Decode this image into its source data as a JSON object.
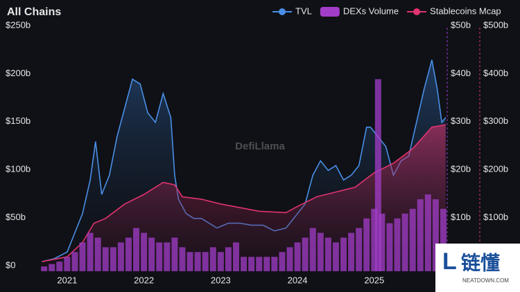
{
  "chart_data": {
    "type": "line",
    "title": "All Chains",
    "xlim": [
      2020.64,
      2025.95
    ],
    "xticks": [
      2021,
      2022,
      2023,
      2024,
      2025
    ],
    "ylim": [
      0,
      250
    ],
    "yticks": [
      {
        "value": 0,
        "label": "$0"
      },
      {
        "value": 50,
        "label": "$50b"
      },
      {
        "value": 100,
        "label": "$100b"
      },
      {
        "value": 150,
        "label": "$150b"
      },
      {
        "value": 200,
        "label": "$200b"
      },
      {
        "value": 250,
        "label": "$250b"
      }
    ],
    "y2lim": [
      0,
      50
    ],
    "y2ticks": [
      {
        "value": 10,
        "label": "$10b"
      },
      {
        "value": 20,
        "label": "$20b"
      },
      {
        "value": 30,
        "label": "$30b"
      },
      {
        "value": 40,
        "label": "$40b"
      },
      {
        "value": 50,
        "label": "$50b"
      }
    ],
    "y3lim": [
      0,
      500
    ],
    "y3ticks": [
      {
        "value": 100,
        "label": "$100b"
      },
      {
        "value": 200,
        "label": "$200b"
      },
      {
        "value": 300,
        "label": "$300b"
      },
      {
        "value": 400,
        "label": "$400b"
      },
      {
        "value": 500,
        "label": "$500b"
      }
    ],
    "grid": false,
    "legend": "top-right",
    "series": [
      {
        "name": "TVL",
        "color": "#4a8fe7",
        "kind": "line",
        "x": [
          2020.67,
          2020.83,
          2021.0,
          2021.1,
          2021.2,
          2021.3,
          2021.37,
          2021.45,
          2021.55,
          2021.65,
          2021.75,
          2021.85,
          2021.95,
          2022.05,
          2022.15,
          2022.25,
          2022.35,
          2022.4,
          2022.45,
          2022.55,
          2022.65,
          2022.75,
          2022.85,
          2022.95,
          2023.1,
          2023.25,
          2023.4,
          2023.55,
          2023.7,
          2023.85,
          2023.95,
          2024.1,
          2024.2,
          2024.3,
          2024.4,
          2024.5,
          2024.6,
          2024.7,
          2024.8,
          2024.9,
          2024.95,
          2025.05,
          2025.15,
          2025.25,
          2025.35,
          2025.45,
          2025.55,
          2025.65,
          2025.75,
          2025.82,
          2025.88,
          2025.93
        ],
        "values": [
          10,
          13,
          20,
          40,
          60,
          95,
          135,
          80,
          100,
          140,
          170,
          200,
          195,
          165,
          155,
          185,
          160,
          100,
          75,
          60,
          55,
          55,
          50,
          45,
          50,
          50,
          48,
          48,
          42,
          45,
          55,
          70,
          100,
          115,
          105,
          110,
          95,
          100,
          110,
          150,
          150,
          140,
          130,
          100,
          115,
          120,
          155,
          190,
          220,
          190,
          155,
          160
        ]
      },
      {
        "name": "DEXs Volume",
        "color": "#a23dc9",
        "kind": "bar",
        "axis": "y2",
        "x": [
          2020.7,
          2020.8,
          2020.9,
          2021.0,
          2021.1,
          2021.2,
          2021.3,
          2021.4,
          2021.5,
          2021.6,
          2021.7,
          2021.8,
          2021.9,
          2022.0,
          2022.1,
          2022.2,
          2022.3,
          2022.4,
          2022.5,
          2022.6,
          2022.7,
          2022.8,
          2022.9,
          2023.0,
          2023.1,
          2023.2,
          2023.3,
          2023.4,
          2023.5,
          2023.6,
          2023.7,
          2023.8,
          2023.9,
          2024.0,
          2024.1,
          2024.2,
          2024.3,
          2024.4,
          2024.5,
          2024.6,
          2024.7,
          2024.8,
          2024.9,
          2025.0,
          2025.05,
          2025.1,
          2025.2,
          2025.3,
          2025.4,
          2025.5,
          2025.6,
          2025.7,
          2025.8,
          2025.9
        ],
        "values": [
          1,
          1.5,
          2,
          3,
          4,
          6,
          8,
          7,
          5,
          5,
          6,
          7,
          9,
          8,
          7,
          6,
          6,
          7,
          5,
          4,
          4,
          4,
          5,
          4,
          5,
          6,
          3,
          3,
          3,
          3,
          3,
          4,
          5,
          6,
          7,
          9,
          8,
          7,
          6,
          7,
          8,
          9,
          11,
          13,
          40,
          12,
          10,
          11,
          12,
          13,
          15,
          16,
          15,
          13
        ]
      },
      {
        "name": "Stablecoins Mcap",
        "color": "#e2336f",
        "kind": "line",
        "axis": "y3",
        "x": [
          2020.67,
          2021.0,
          2021.2,
          2021.35,
          2021.5,
          2021.75,
          2022.0,
          2022.25,
          2022.4,
          2022.5,
          2022.75,
          2023.0,
          2023.5,
          2023.85,
          2024.0,
          2024.25,
          2024.5,
          2024.75,
          2025.0,
          2025.25,
          2025.5,
          2025.75,
          2025.93
        ],
        "values": [
          20,
          30,
          60,
          100,
          110,
          140,
          160,
          185,
          180,
          155,
          150,
          140,
          125,
          122,
          135,
          155,
          165,
          175,
          205,
          225,
          255,
          300,
          305
        ]
      }
    ]
  },
  "watermarks": {
    "brand": "DefiLlama",
    "site_name": "链懂",
    "site_url": "NEATDOWN.COM"
  }
}
